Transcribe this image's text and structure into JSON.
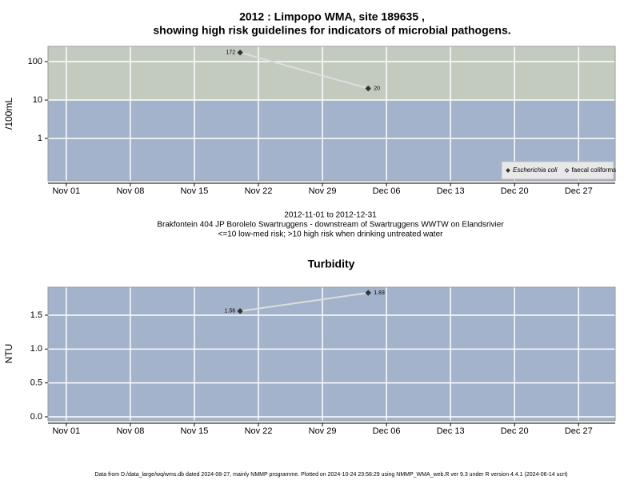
{
  "title": "2012 : Limpopo WMA, site 189635 ,",
  "title2": "showing high risk guidelines for indicators of microbial pathogens.",
  "footer": "Data from D:/data_large/wq/wms.db dated 2024-08-27, mainly NMMP programme. Plotted on 2024-10-24 23:58:29 using NMMP_WMA_web.R ver 9.3 under R version 4.4.1 (2024-06-14 ucrt)",
  "chart_data": [
    {
      "type": "line",
      "ylabel": "/100mL",
      "log_y": true,
      "grid": true,
      "legend": "bottom-right",
      "subtitle": [
        "2012-11-01 to 2012-12-31",
        "Brakfontein 404 JP Borolelo Swartruggens - downstream of Swartruggens WWTW on Elandsrivier",
        "<=10 low-med risk; >10 high risk when drinking untreated water"
      ],
      "xlim": [
        "2012-10-30",
        "2012-12-31"
      ],
      "xticks": [
        {
          "value": "2012-11-01",
          "label": "Nov 01"
        },
        {
          "value": "2012-11-08",
          "label": "Nov 08"
        },
        {
          "value": "2012-11-15",
          "label": "Nov 15"
        },
        {
          "value": "2012-11-22",
          "label": "Nov 22"
        },
        {
          "value": "2012-11-29",
          "label": "Nov 29"
        },
        {
          "value": "2012-12-06",
          "label": "Dec 06"
        },
        {
          "value": "2012-12-13",
          "label": "Dec 13"
        },
        {
          "value": "2012-12-20",
          "label": "Dec 20"
        },
        {
          "value": "2012-12-27",
          "label": "Dec 27"
        }
      ],
      "ylim": [
        0.079,
        249
      ],
      "yticks": [
        1,
        10,
        100
      ],
      "threshold": 10,
      "above_color": "#c3cbbf",
      "below_color": "#a2b3cb",
      "series": [
        {
          "name": "Escherichia coli",
          "color": "#333333",
          "line_color": "#dddddd",
          "marker": "filled",
          "x": [
            "2012-11-20",
            "2012-12-04"
          ],
          "values": [
            172,
            20
          ]
        },
        {
          "name": "faecal coliforms",
          "color": "#333333",
          "line_color": "#dddddd",
          "marker": "open",
          "x": [],
          "values": []
        }
      ]
    },
    {
      "type": "line",
      "title": "Turbidity",
      "ylabel": "NTU",
      "log_y": false,
      "grid": true,
      "xlim": [
        "2012-10-30",
        "2012-12-31"
      ],
      "xticks": [
        {
          "value": "2012-11-01",
          "label": "Nov 01"
        },
        {
          "value": "2012-11-08",
          "label": "Nov 08"
        },
        {
          "value": "2012-11-15",
          "label": "Nov 15"
        },
        {
          "value": "2012-11-22",
          "label": "Nov 22"
        },
        {
          "value": "2012-11-29",
          "label": "Nov 29"
        },
        {
          "value": "2012-12-06",
          "label": "Dec 06"
        },
        {
          "value": "2012-12-13",
          "label": "Dec 13"
        },
        {
          "value": "2012-12-20",
          "label": "Dec 20"
        },
        {
          "value": "2012-12-27",
          "label": "Dec 27"
        }
      ],
      "ylim": [
        -0.059,
        1.913
      ],
      "yticks": [
        {
          "value": 0,
          "label": "0.0"
        },
        0.5,
        {
          "value": 1,
          "label": "1.0"
        },
        1.5
      ],
      "below_color": "#a2b3cb",
      "series": [
        {
          "name": "Turbidity",
          "color": "#333333",
          "line_color": "#dddddd",
          "marker": "filled",
          "x": [
            "2012-11-20",
            "2012-12-04"
          ],
          "values": [
            1.56,
            1.83
          ]
        }
      ]
    }
  ]
}
